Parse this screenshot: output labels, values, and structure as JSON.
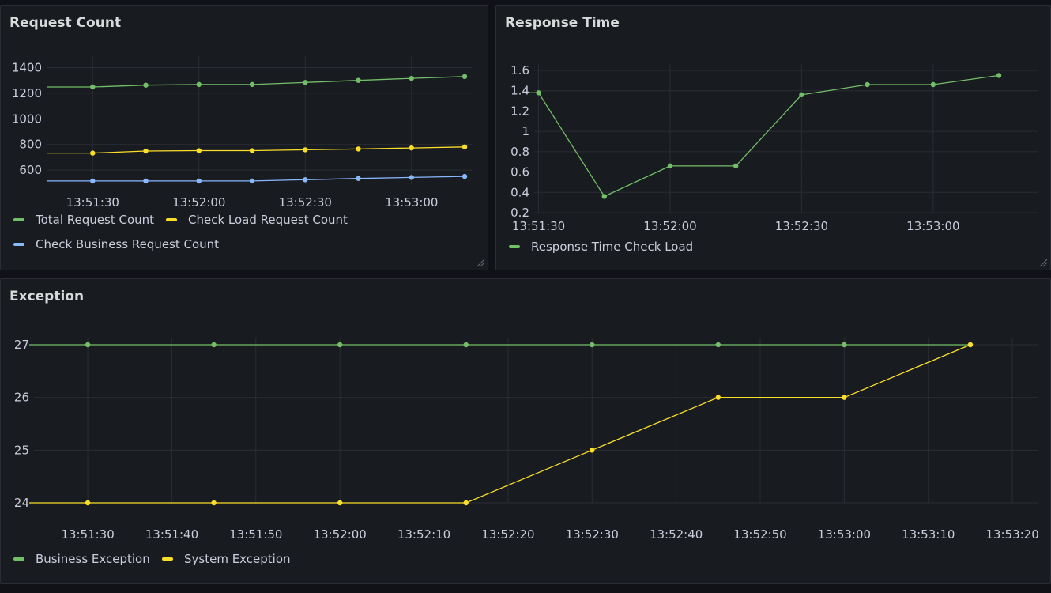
{
  "panels": {
    "requests": {
      "title": "Request Count"
    },
    "response": {
      "title": "Response Time"
    },
    "exception": {
      "title": "Exception"
    }
  },
  "chart_data": [
    {
      "id": "requests",
      "type": "line",
      "title": "Request Count",
      "xlabel": "",
      "ylabel": "",
      "x_ticks": [
        "13:51:30",
        "13:52:00",
        "13:52:30",
        "13:53:00"
      ],
      "y_ticks": [
        600,
        800,
        1000,
        1200,
        1400
      ],
      "ylim": [
        490,
        1440
      ],
      "grid": true,
      "legend_position": "bottom",
      "x": [
        "13:51:30",
        "13:51:45",
        "13:52:00",
        "13:52:15",
        "13:52:30",
        "13:52:45",
        "13:53:00",
        "13:53:15"
      ],
      "series": [
        {
          "name": "Total Request Count",
          "color": "#73bf69",
          "values": [
            1249,
            1263,
            1268,
            1268,
            1284,
            1300,
            1316,
            1330
          ]
        },
        {
          "name": "Check Load Request Count",
          "color": "#fade2a",
          "values": [
            733,
            749,
            752,
            752,
            759,
            765,
            773,
            781
          ]
        },
        {
          "name": "Check Business Request Count",
          "color": "#8ab8ff",
          "values": [
            515,
            515,
            515,
            515,
            525,
            535,
            543,
            551
          ]
        }
      ]
    },
    {
      "id": "response",
      "type": "line",
      "title": "Response Time",
      "xlabel": "",
      "ylabel": "",
      "x_ticks": [
        "13:51:30",
        "13:52:00",
        "13:52:30",
        "13:53:00"
      ],
      "y_ticks": [
        "0.2",
        "0.4",
        "0.6",
        "0.8",
        "1",
        "1.2",
        "1.4",
        "1.6"
      ],
      "ylim": [
        0.2,
        1.6
      ],
      "grid": true,
      "legend_position": "bottom",
      "x": [
        "13:51:30",
        "13:51:45",
        "13:52:00",
        "13:52:15",
        "13:52:30",
        "13:52:45",
        "13:53:00",
        "13:53:15"
      ],
      "series": [
        {
          "name": "Response Time Check Load",
          "color": "#73bf69",
          "values": [
            1.38,
            0.36,
            0.66,
            0.66,
            1.36,
            1.46,
            1.46,
            1.55
          ]
        }
      ]
    },
    {
      "id": "exception",
      "type": "line",
      "title": "Exception",
      "xlabel": "",
      "ylabel": "",
      "x_ticks": [
        "13:51:30",
        "13:51:40",
        "13:51:50",
        "13:52:00",
        "13:52:10",
        "13:52:20",
        "13:52:30",
        "13:52:40",
        "13:52:50",
        "13:53:00",
        "13:53:10",
        "13:53:20"
      ],
      "y_ticks": [
        24,
        25,
        26,
        27
      ],
      "ylim": [
        24,
        27
      ],
      "grid": true,
      "legend_position": "bottom",
      "x": [
        "13:51:30",
        "13:51:45",
        "13:52:00",
        "13:52:15",
        "13:52:30",
        "13:52:45",
        "13:53:00",
        "13:53:15"
      ],
      "series": [
        {
          "name": "Business Exception",
          "color": "#73bf69",
          "values": [
            27,
            27,
            27,
            27,
            27,
            27,
            27,
            27
          ]
        },
        {
          "name": "System Exception",
          "color": "#fade2a",
          "values": [
            24,
            24,
            24,
            24,
            25,
            26,
            26,
            27
          ]
        }
      ]
    }
  ]
}
